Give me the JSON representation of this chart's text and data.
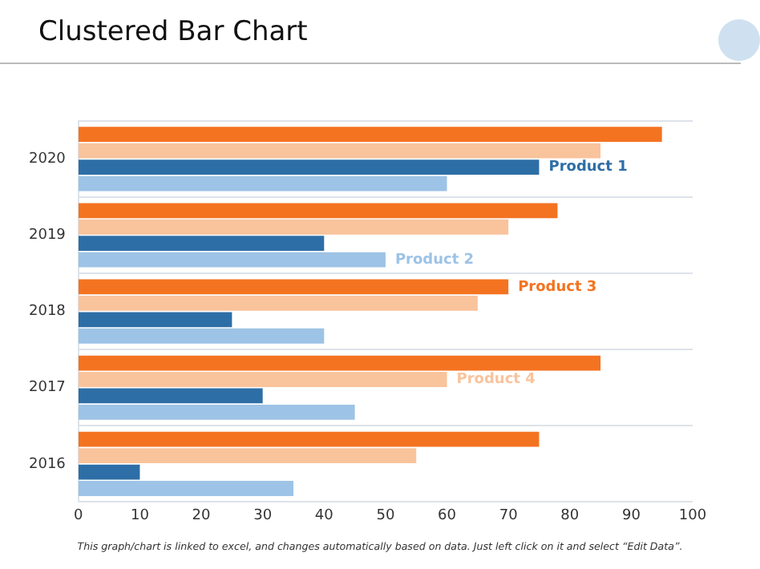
{
  "chart_data": {
    "type": "bar",
    "title": "Clustered Bar Chart",
    "orientation": "horizontal",
    "categories": [
      "2020",
      "2019",
      "2018",
      "2017",
      "2016"
    ],
    "series": [
      {
        "name": "Product 3",
        "color": "#f47321",
        "values": [
          95,
          78,
          70,
          85,
          75
        ]
      },
      {
        "name": "Product 4",
        "color": "#f9c39c",
        "values": [
          85,
          70,
          65,
          60,
          55
        ]
      },
      {
        "name": "Product 1",
        "color": "#2e6ea6",
        "values": [
          75,
          40,
          25,
          30,
          10
        ]
      },
      {
        "name": "Product 2",
        "color": "#9dc3e6",
        "values": [
          60,
          50,
          40,
          45,
          35
        ]
      }
    ],
    "xlim": [
      0,
      100
    ],
    "xticks": [
      0,
      10,
      20,
      30,
      40,
      50,
      60,
      70,
      80,
      90,
      100
    ],
    "grid": "y",
    "legend": false,
    "annotations": [
      "This graph/chart is linked to excel, and changes automatically based on data. Just left click on it and select “Edit Data”."
    ]
  }
}
